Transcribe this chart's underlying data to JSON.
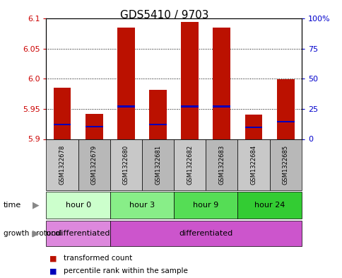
{
  "title": "GDS5410 / 9703",
  "samples": [
    "GSM1322678",
    "GSM1322679",
    "GSM1322680",
    "GSM1322681",
    "GSM1322682",
    "GSM1322683",
    "GSM1322684",
    "GSM1322685"
  ],
  "red_bar_top": [
    5.985,
    5.942,
    6.085,
    5.982,
    6.095,
    6.085,
    5.941,
    5.999
  ],
  "blue_marker_y": [
    5.924,
    5.921,
    5.954,
    5.924,
    5.954,
    5.954,
    5.919,
    5.929
  ],
  "ylim": [
    5.9,
    6.1
  ],
  "yticks_left": [
    5.9,
    5.95,
    6.0,
    6.05,
    6.1
  ],
  "yticks_right": [
    0,
    25,
    50,
    75,
    100
  ],
  "ylabel_left_color": "#cc0000",
  "ylabel_right_color": "#0000cc",
  "time_groups": [
    {
      "label": "hour 0",
      "start": 0,
      "end": 2,
      "color": "#ccffcc"
    },
    {
      "label": "hour 3",
      "start": 2,
      "end": 4,
      "color": "#88ee88"
    },
    {
      "label": "hour 9",
      "start": 4,
      "end": 6,
      "color": "#55dd55"
    },
    {
      "label": "hour 24",
      "start": 6,
      "end": 8,
      "color": "#33cc33"
    }
  ],
  "growth_groups": [
    {
      "label": "undifferentiated",
      "start": 0,
      "end": 2,
      "color": "#dd88dd"
    },
    {
      "label": "differentiated",
      "start": 2,
      "end": 8,
      "color": "#cc55cc"
    }
  ],
  "bar_color": "#bb1100",
  "blue_color": "#0000bb",
  "bg_color": "#ffffff",
  "sample_box_color": "#cccccc",
  "legend_items": [
    {
      "label": "transformed count",
      "color": "#bb1100"
    },
    {
      "label": "percentile rank within the sample",
      "color": "#0000bb"
    }
  ]
}
